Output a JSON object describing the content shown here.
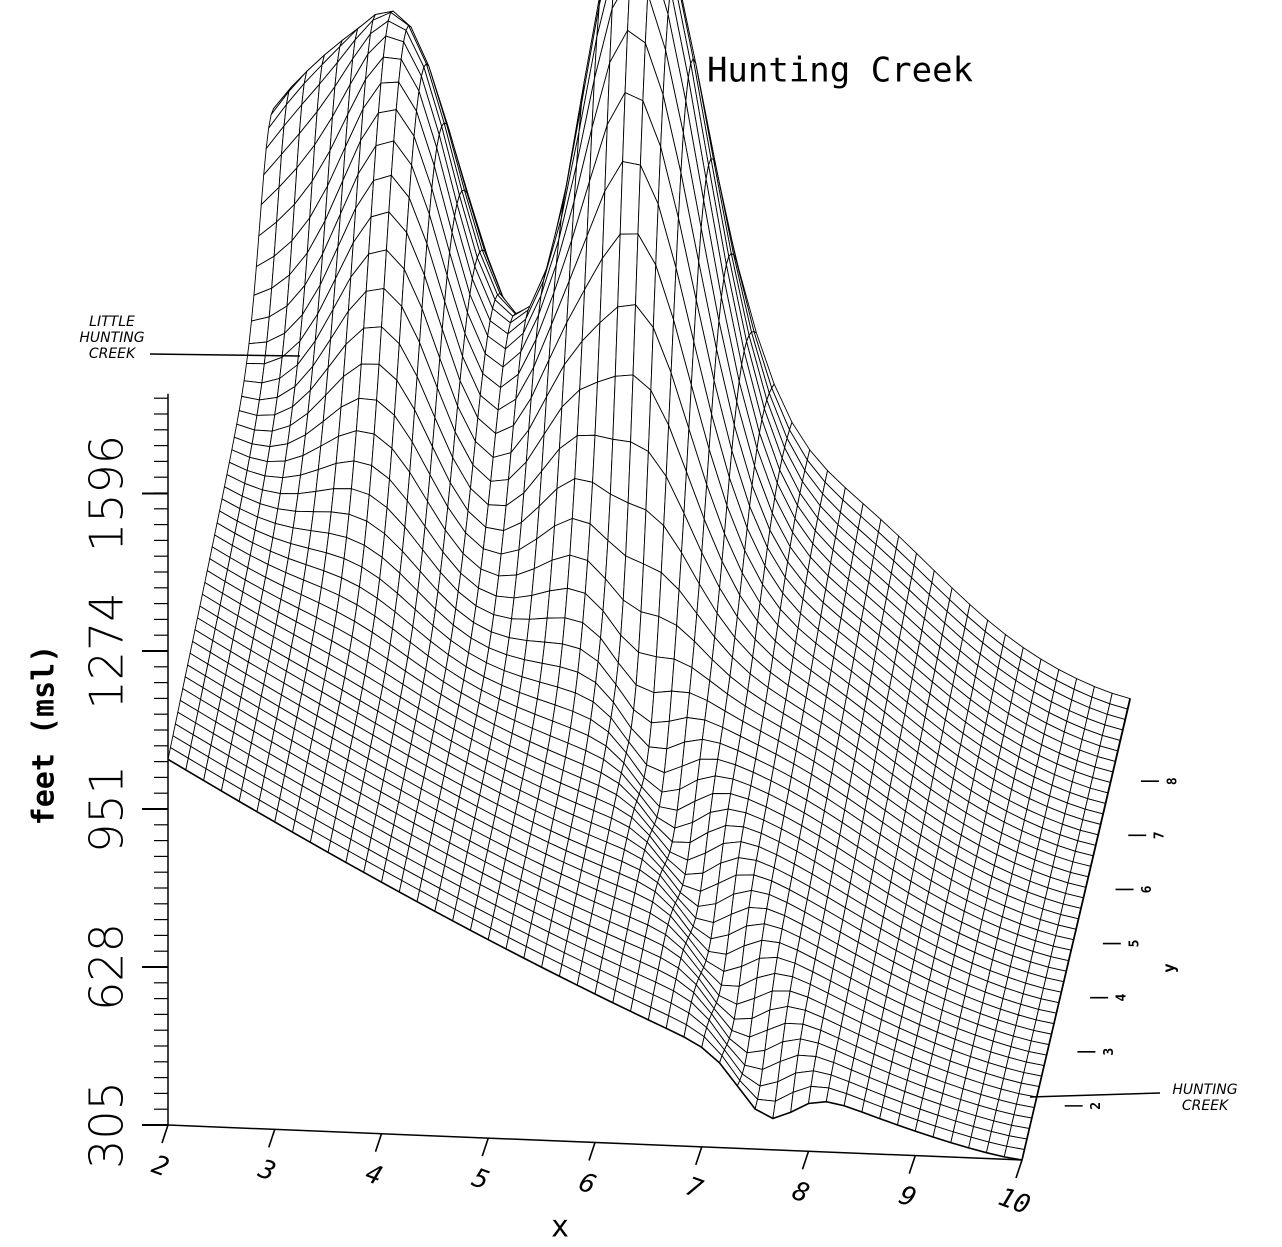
{
  "chart_data": {
    "type": "surface",
    "title": "Hunting Creek",
    "zlabel": "feet (msl)",
    "xlabel": "x",
    "ylabel": "y",
    "zlim": [
      305,
      1800
    ],
    "zticks": [
      305,
      628,
      951,
      1274,
      1596
    ],
    "xlim": [
      2,
      10
    ],
    "xticks": [
      2,
      3,
      4,
      5,
      6,
      7,
      8,
      9,
      10
    ],
    "ylim": [
      1,
      9.5
    ],
    "yticks": [
      2,
      3,
      4,
      5,
      6,
      7,
      8
    ],
    "annotations": [
      {
        "lines": [
          "LITTLE",
          "HUNTING",
          "CREEK"
        ]
      },
      {
        "lines": [
          "HUNTING",
          "CREEK"
        ]
      }
    ],
    "color": "#000000"
  }
}
